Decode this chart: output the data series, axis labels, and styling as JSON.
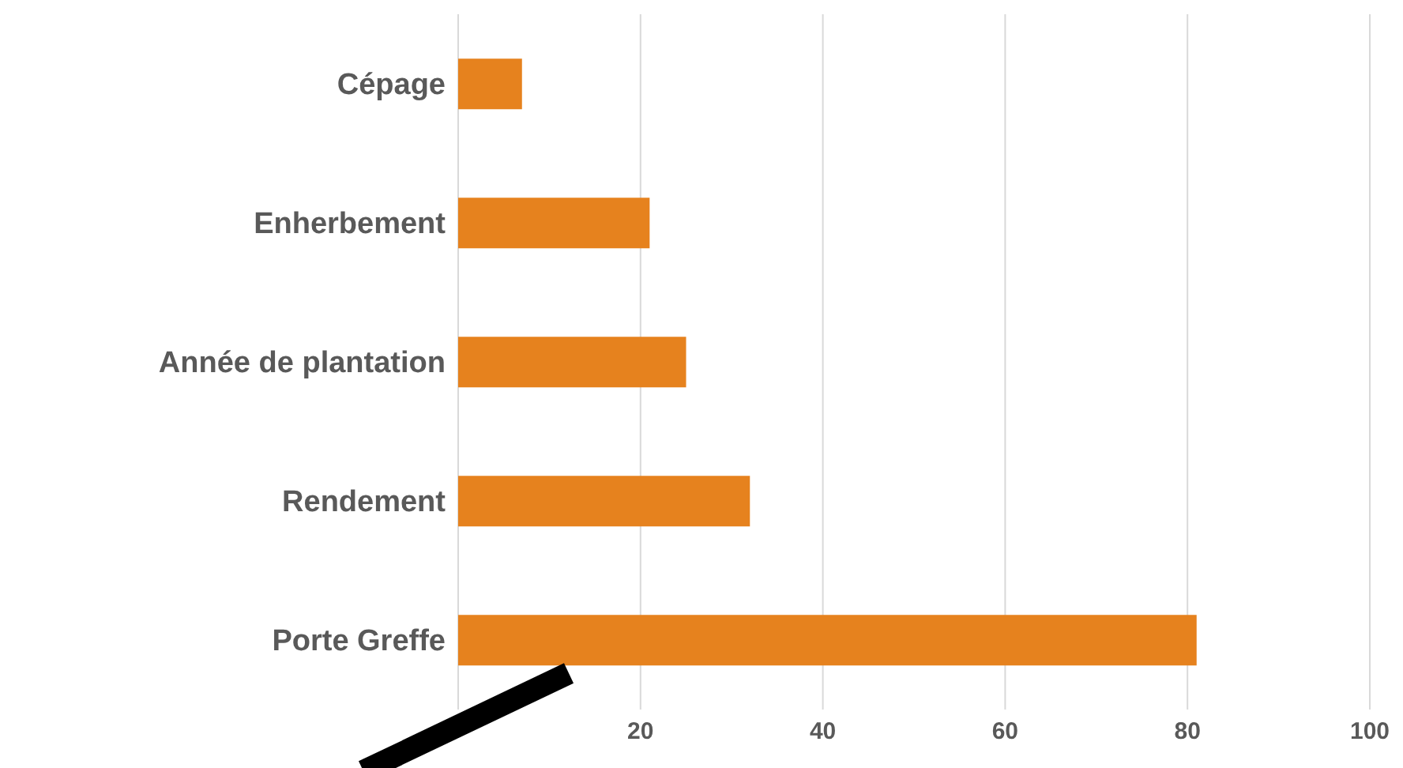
{
  "chart_data": {
    "type": "bar",
    "orientation": "horizontal",
    "categories": [
      "Cépage",
      "Enherbement",
      "Année de plantation",
      "Rendement",
      "Porte Greffe"
    ],
    "values": [
      7,
      21,
      25,
      32,
      81
    ],
    "color": "#e6821e",
    "xlim": [
      0,
      100
    ],
    "xticks": [
      {
        "value": 0,
        "label": null
      },
      20,
      40,
      60,
      80,
      100
    ],
    "grid": "x",
    "legend": false
  }
}
